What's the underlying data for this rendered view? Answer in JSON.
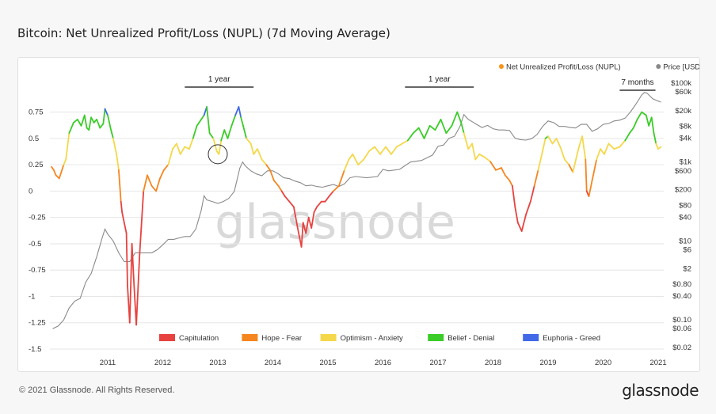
{
  "title": "Bitcoin: Net Unrealized Profit/Loss (NUPL) (7d Moving Average)",
  "footer": "© 2021 Glassnode. All Rights Reserved.",
  "brand": "glassnode",
  "watermark": "glassnode",
  "chart_data": {
    "type": "line",
    "legend_placement": "top-right",
    "grid": true,
    "x_ticks": [
      "2011",
      "2012",
      "2013",
      "2014",
      "2015",
      "2016",
      "2017",
      "2018",
      "2019",
      "2020",
      "2021"
    ],
    "x_range": [
      2010.45,
      2021.6
    ],
    "y_left_ticks": [
      0.75,
      0.5,
      0.25,
      0,
      -0.25,
      -0.5,
      -0.75,
      -1,
      -1.25,
      -1.5
    ],
    "y_left_tick_labels": [
      "0.75",
      "0.5",
      "0.25",
      "0",
      "-0.25",
      "-0.5",
      "-0.75",
      "-1",
      "-1.25",
      "-1.5"
    ],
    "ylim_left": [
      -1.5,
      0.95
    ],
    "y_right_ticks": [
      100000,
      60000,
      20000,
      8000,
      4000,
      1000,
      600,
      200,
      80,
      40,
      10,
      6,
      2,
      0.8,
      0.4,
      0.1,
      0.06,
      0.02
    ],
    "y_right_tick_labels": [
      "$100k",
      "$60k",
      "$20k",
      "$8k",
      "$4k",
      "$1k",
      "$600",
      "$200",
      "$80",
      "$40",
      "$10",
      "$6",
      "$2",
      "$0.80",
      "$0.40",
      "$0.10",
      "$0.06",
      "$0.02"
    ],
    "right_axis_scale": "log",
    "legend": [
      {
        "name": "Net Unrealized Profit/Loss (NUPL)",
        "color": "#f7931a"
      },
      {
        "name": "Price [USD]",
        "color": "#888888"
      }
    ],
    "zones": [
      {
        "name": "Capitulation",
        "color": "#e8423f",
        "range": [
          -1.5,
          0
        ]
      },
      {
        "name": "Hope - Fear",
        "color": "#f5861f",
        "range": [
          0,
          0.25
        ]
      },
      {
        "name": "Optimism - Anxiety",
        "color": "#f4d84a",
        "range": [
          0.25,
          0.5
        ]
      },
      {
        "name": "Belief - Denial",
        "color": "#3bcc28",
        "range": [
          0.5,
          0.75
        ]
      },
      {
        "name": "Euphoria - Greed",
        "color": "#4169e8",
        "range": [
          0.75,
          1
        ]
      }
    ],
    "annotations": [
      {
        "text": "1 year",
        "x_start": 2012.9,
        "x_end": 2014.15
      },
      {
        "text": "1 year",
        "x_start": 2016.9,
        "x_end": 2018.15
      },
      {
        "text": "7 months",
        "x_start": 2020.8,
        "x_end": 2021.45
      }
    ],
    "circle_annotation": {
      "x": 2013.5,
      "y": 0.35
    },
    "series": [
      {
        "name": "Net Unrealized Profit/Loss (NUPL)",
        "x": [
          2010.48,
          2010.52,
          2010.56,
          2010.62,
          2010.7,
          2010.74,
          2010.8,
          2010.88,
          2010.95,
          2011.02,
          2011.08,
          2011.12,
          2011.16,
          2011.2,
          2011.25,
          2011.3,
          2011.36,
          2011.42,
          2011.45,
          2011.5,
          2011.55,
          2011.6,
          2011.66,
          2011.7,
          2011.74,
          2011.76,
          2011.8,
          2011.84,
          2011.86,
          2011.9,
          2011.94,
          2011.98,
          2012.02,
          2012.08,
          2012.15,
          2012.22,
          2012.3,
          2012.38,
          2012.45,
          2012.52,
          2012.6,
          2012.68,
          2012.75,
          2012.82,
          2012.9,
          2012.98,
          2013.05,
          2013.12,
          2013.2,
          2013.25,
          2013.3,
          2013.35,
          2013.42,
          2013.48,
          2013.52,
          2013.56,
          2013.62,
          2013.68,
          2013.75,
          2013.82,
          2013.88,
          2013.92,
          2013.96,
          2014.02,
          2014.1,
          2014.15,
          2014.22,
          2014.3,
          2014.38,
          2014.45,
          2014.52,
          2014.6,
          2014.66,
          2014.72,
          2014.8,
          2014.88,
          2014.95,
          2015.02,
          2015.05,
          2015.1,
          2015.15,
          2015.2,
          2015.25,
          2015.3,
          2015.38,
          2015.45,
          2015.52,
          2015.6,
          2015.7,
          2015.8,
          2015.88,
          2015.95,
          2016.05,
          2016.15,
          2016.25,
          2016.35,
          2016.45,
          2016.55,
          2016.65,
          2016.75,
          2016.85,
          2016.95,
          2017.05,
          2017.15,
          2017.25,
          2017.35,
          2017.45,
          2017.55,
          2017.65,
          2017.75,
          2017.85,
          2017.92,
          2017.97,
          2018.05,
          2018.12,
          2018.18,
          2018.25,
          2018.35,
          2018.45,
          2018.55,
          2018.65,
          2018.72,
          2018.8,
          2018.85,
          2018.9,
          2018.95,
          2019.02,
          2019.1,
          2019.18,
          2019.25,
          2019.32,
          2019.4,
          2019.45,
          2019.5,
          2019.58,
          2019.65,
          2019.72,
          2019.8,
          2019.88,
          2019.95,
          2020.05,
          2020.12,
          2020.18,
          2020.2,
          2020.24,
          2020.3,
          2020.38,
          2020.45,
          2020.52,
          2020.6,
          2020.7,
          2020.8,
          2020.9,
          2020.98,
          2021.05,
          2021.12,
          2021.2,
          2021.28,
          2021.33,
          2021.38,
          2021.42,
          2021.46,
          2021.5,
          2021.55
        ],
        "y": [
          0.23,
          0.2,
          0.15,
          0.12,
          0.25,
          0.3,
          0.55,
          0.65,
          0.68,
          0.62,
          0.72,
          0.6,
          0.58,
          0.7,
          0.65,
          0.68,
          0.6,
          0.64,
          0.78,
          0.72,
          0.6,
          0.5,
          0.35,
          0.2,
          -0.1,
          -0.2,
          -0.3,
          -0.4,
          -0.9,
          -1.25,
          -0.5,
          -0.9,
          -1.27,
          -0.6,
          0.0,
          0.15,
          0.05,
          0.0,
          0.12,
          0.2,
          0.25,
          0.4,
          0.45,
          0.35,
          0.42,
          0.4,
          0.5,
          0.62,
          0.68,
          0.72,
          0.8,
          0.55,
          0.5,
          0.38,
          0.35,
          0.48,
          0.58,
          0.5,
          0.62,
          0.72,
          0.8,
          0.7,
          0.62,
          0.5,
          0.45,
          0.35,
          0.4,
          0.3,
          0.25,
          0.2,
          0.1,
          0.05,
          0.0,
          -0.05,
          -0.1,
          -0.15,
          -0.35,
          -0.53,
          -0.3,
          -0.4,
          -0.25,
          -0.35,
          -0.2,
          -0.15,
          -0.1,
          -0.1,
          -0.05,
          0.0,
          0.05,
          0.2,
          0.3,
          0.35,
          0.25,
          0.3,
          0.38,
          0.42,
          0.35,
          0.42,
          0.35,
          0.42,
          0.45,
          0.48,
          0.55,
          0.6,
          0.5,
          0.62,
          0.58,
          0.68,
          0.55,
          0.62,
          0.75,
          0.65,
          0.55,
          0.4,
          0.45,
          0.3,
          0.35,
          0.32,
          0.28,
          0.2,
          0.22,
          0.15,
          0.1,
          0.05,
          -0.15,
          -0.3,
          -0.38,
          -0.22,
          -0.1,
          0.05,
          0.2,
          0.38,
          0.5,
          0.52,
          0.45,
          0.5,
          0.42,
          0.3,
          0.25,
          0.18,
          0.4,
          0.52,
          0.3,
          0.0,
          -0.05,
          0.1,
          0.3,
          0.4,
          0.35,
          0.45,
          0.4,
          0.42,
          0.48,
          0.55,
          0.6,
          0.68,
          0.75,
          0.72,
          0.62,
          0.7,
          0.55,
          0.45,
          0.4,
          0.42
        ]
      },
      {
        "name": "Price [USD]",
        "x": [
          2010.5,
          2010.6,
          2010.7,
          2010.8,
          2010.9,
          2011.0,
          2011.1,
          2011.2,
          2011.3,
          2011.4,
          2011.45,
          2011.5,
          2011.6,
          2011.7,
          2011.8,
          2011.9,
          2012.0,
          2012.1,
          2012.2,
          2012.3,
          2012.4,
          2012.5,
          2012.6,
          2012.7,
          2012.8,
          2012.9,
          2013.0,
          2013.1,
          2013.2,
          2013.25,
          2013.3,
          2013.4,
          2013.5,
          2013.6,
          2013.7,
          2013.8,
          2013.9,
          2013.95,
          2014.0,
          2014.1,
          2014.2,
          2014.3,
          2014.4,
          2014.5,
          2014.6,
          2014.7,
          2014.8,
          2014.9,
          2015.0,
          2015.1,
          2015.2,
          2015.3,
          2015.4,
          2015.5,
          2015.6,
          2015.7,
          2015.8,
          2015.9,
          2016.0,
          2016.2,
          2016.4,
          2016.5,
          2016.6,
          2016.8,
          2017.0,
          2017.2,
          2017.4,
          2017.5,
          2017.6,
          2017.7,
          2017.8,
          2017.9,
          2017.97,
          2018.05,
          2018.1,
          2018.2,
          2018.3,
          2018.4,
          2018.5,
          2018.6,
          2018.7,
          2018.8,
          2018.9,
          2019.0,
          2019.1,
          2019.2,
          2019.3,
          2019.4,
          2019.5,
          2019.6,
          2019.7,
          2019.8,
          2019.9,
          2020.0,
          2020.1,
          2020.2,
          2020.3,
          2020.4,
          2020.5,
          2020.6,
          2020.7,
          2020.8,
          2020.9,
          2021.0,
          2021.1,
          2021.2,
          2021.25,
          2021.3,
          2021.4,
          2021.5,
          2021.55
        ],
        "y": [
          0.06,
          0.07,
          0.1,
          0.2,
          0.3,
          0.35,
          0.9,
          1.5,
          4,
          12,
          20,
          15,
          10,
          5,
          3,
          3,
          5,
          5,
          5,
          5,
          6,
          8,
          11,
          11,
          12,
          13,
          13,
          20,
          60,
          140,
          110,
          100,
          90,
          100,
          120,
          180,
          700,
          1000,
          800,
          600,
          500,
          450,
          600,
          600,
          500,
          400,
          380,
          330,
          300,
          250,
          260,
          240,
          230,
          250,
          270,
          240,
          280,
          400,
          430,
          400,
          430,
          650,
          600,
          650,
          1000,
          1100,
          1500,
          2500,
          2700,
          4000,
          4500,
          8000,
          16000,
          12000,
          11000,
          9000,
          7500,
          8500,
          7000,
          6500,
          6500,
          6300,
          4000,
          3700,
          3600,
          3900,
          5000,
          8000,
          11000,
          10000,
          8000,
          8000,
          7500,
          7300,
          9000,
          9000,
          6000,
          7000,
          9000,
          9500,
          11000,
          11500,
          13000,
          19000,
          30000,
          50000,
          58000,
          55000,
          40000,
          35000,
          33000
        ]
      }
    ]
  }
}
